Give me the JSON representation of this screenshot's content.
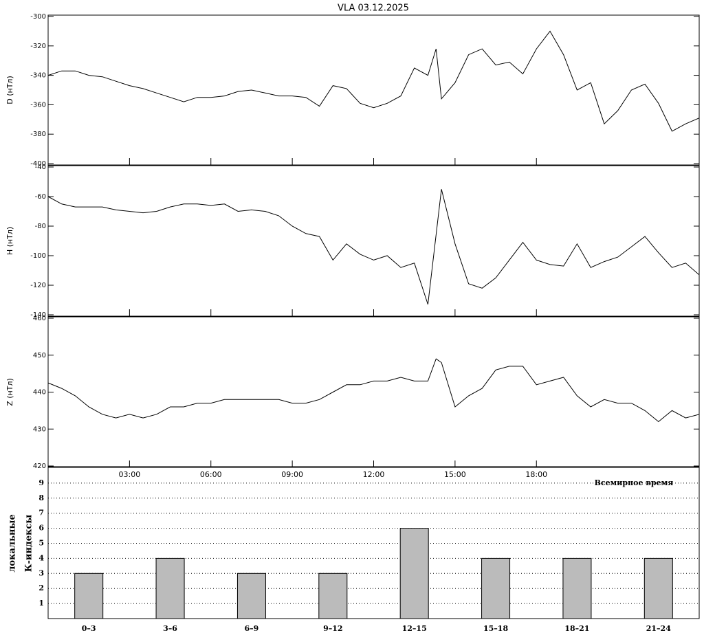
{
  "chart_data": [
    {
      "type": "line",
      "title": "VLA   03.12.2025",
      "y_label": "D (нТл)",
      "color": "#000000",
      "x": [
        0,
        0.5,
        1,
        1.5,
        2,
        2.5,
        3,
        3.5,
        4,
        4.5,
        5,
        5.5,
        6,
        6.5,
        7,
        7.5,
        8,
        8.5,
        9,
        9.5,
        10,
        10.5,
        11,
        11.5,
        12,
        12.5,
        13,
        13.5,
        14,
        14.3,
        14.5,
        15,
        15.5,
        16,
        16.5,
        17,
        17.5,
        18,
        18.5,
        19,
        19.5,
        20,
        20.5,
        21,
        21.5,
        22,
        22.5,
        23,
        23.5,
        24
      ],
      "values": [
        -340,
        -337,
        -337,
        -340,
        -341,
        -344,
        -347,
        -349,
        -352,
        -355,
        -358,
        -355,
        -355,
        -354,
        -351,
        -350,
        -352,
        -354,
        -354,
        -355,
        -361,
        -347,
        -349,
        -359,
        -362,
        -359,
        -354,
        -335,
        -340,
        -322,
        -356,
        -345,
        -326,
        -322,
        -333,
        -331,
        -339,
        -322,
        -310,
        -326,
        -350,
        -345,
        -373,
        -364,
        -350,
        -346,
        -359,
        -378,
        -373,
        -369
      ],
      "xlim": [
        0,
        24
      ],
      "ylim": [
        -400,
        -300
      ],
      "yticks": [
        -400,
        -380,
        -360,
        -340,
        -320,
        -300
      ]
    },
    {
      "type": "line",
      "y_label": "H (нТл)",
      "color": "#000000",
      "x": [
        0,
        0.5,
        1,
        1.5,
        2,
        2.5,
        3,
        3.5,
        4,
        4.5,
        5,
        5.5,
        6,
        6.5,
        7,
        7.5,
        8,
        8.5,
        9,
        9.5,
        10,
        10.5,
        11,
        11.5,
        12,
        12.5,
        13,
        13.5,
        14,
        14.5,
        15,
        15.5,
        16,
        16.5,
        17,
        17.5,
        18,
        18.5,
        19,
        19.5,
        20,
        20.5,
        21,
        21.5,
        22,
        22.5,
        23,
        23.5,
        24
      ],
      "values": [
        -60,
        -65,
        -67,
        -67,
        -67,
        -69,
        -70,
        -71,
        -70,
        -67,
        -65,
        -65,
        -66,
        -65,
        -70,
        -69,
        -70,
        -73,
        -80,
        -85,
        -87,
        -103,
        -92,
        -99,
        -103,
        -100,
        -108,
        -105,
        -133,
        -55,
        -92,
        -119,
        -122,
        -115,
        -103,
        -91,
        -103,
        -106,
        -107,
        -92,
        -108,
        -104,
        -101,
        -94,
        -87,
        -98,
        -108,
        -105,
        -113
      ],
      "xlim": [
        0,
        24
      ],
      "ylim": [
        -140,
        -40
      ],
      "yticks": [
        -140,
        -120,
        -100,
        -80,
        -60,
        -40
      ]
    },
    {
      "type": "line",
      "y_label": "Z (нТл)",
      "x_label": "Всемирное время",
      "color": "#000000",
      "x": [
        0,
        0.5,
        1,
        1.5,
        2,
        2.5,
        3,
        3.5,
        4,
        4.5,
        5,
        5.5,
        6,
        6.5,
        7,
        7.5,
        8,
        8.5,
        9,
        9.5,
        10,
        10.5,
        11,
        11.5,
        12,
        12.5,
        13,
        13.5,
        14,
        14.3,
        14.5,
        15,
        15.5,
        16,
        16.5,
        17,
        17.5,
        18,
        18.5,
        19,
        19.5,
        20,
        20.5,
        21,
        21.5,
        22,
        22.5,
        23,
        23.5,
        24
      ],
      "values": [
        442.5,
        441,
        439,
        436,
        434,
        433,
        434,
        433,
        434,
        436,
        436,
        437,
        437,
        438,
        438,
        438,
        438,
        438,
        437,
        437,
        438,
        440,
        442,
        442,
        443,
        443,
        444,
        443,
        443,
        449,
        448,
        436,
        439,
        441,
        446,
        447,
        447,
        442,
        443,
        444,
        439,
        436,
        438,
        437,
        437,
        435,
        432,
        435,
        433,
        434
      ],
      "xlim": [
        0,
        24
      ],
      "ylim": [
        420,
        460
      ],
      "yticks": [
        420,
        430,
        440,
        450,
        460
      ],
      "xticks": [
        {
          "value": 3,
          "label": "03:00"
        },
        {
          "value": 6,
          "label": "06:00"
        },
        {
          "value": 9,
          "label": "09:00"
        },
        {
          "value": 12,
          "label": "12:00"
        },
        {
          "value": 15,
          "label": "15:00"
        },
        {
          "value": 18,
          "label": "18:00"
        }
      ]
    },
    {
      "type": "bar",
      "y_label": [
        "локальные",
        "К-индексы"
      ],
      "color": "#bbbbbb",
      "categories": [
        "0–3",
        "3–6",
        "6–9",
        "9–12",
        "12–15",
        "15–18",
        "18–21",
        "21–24"
      ],
      "values": [
        3,
        4,
        3,
        3,
        6,
        4,
        4,
        4
      ],
      "ylim": [
        0,
        10
      ],
      "yticks": [
        1,
        2,
        3,
        4,
        5,
        6,
        7,
        8,
        9
      ],
      "grid": true
    }
  ]
}
